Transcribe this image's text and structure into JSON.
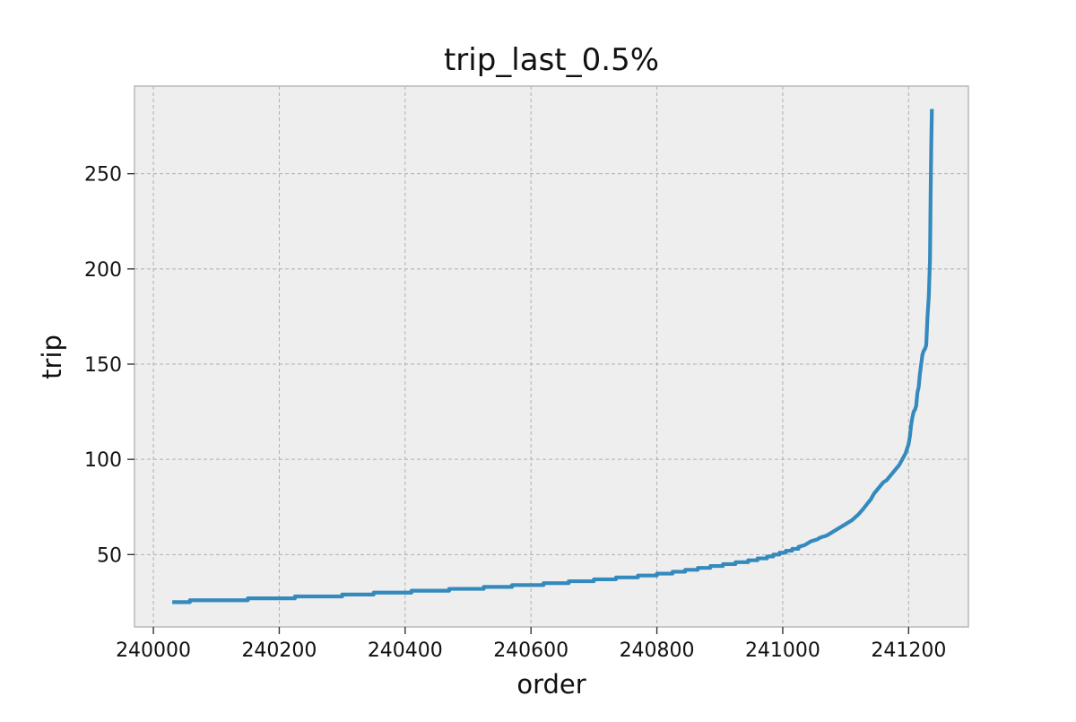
{
  "chart_data": {
    "type": "line",
    "title": "trip_last_0.5%",
    "xlabel": "order",
    "ylabel": "trip",
    "xlim": [
      239970,
      241295
    ],
    "ylim": [
      12,
      296
    ],
    "xticks": [
      240000,
      240200,
      240400,
      240600,
      240800,
      241000,
      241200
    ],
    "xtick_labels": [
      "240000",
      "240200",
      "240400",
      "240600",
      "240800",
      "241000",
      "241200"
    ],
    "yticks": [
      50,
      100,
      150,
      200,
      250
    ],
    "ytick_labels": [
      "50",
      "100",
      "150",
      "200",
      "250"
    ],
    "grid": true,
    "style": {
      "line_color": "#348abd",
      "plot_background": "#eeeeee",
      "grid_color": "#b0b0b0",
      "spine_color": "#bcbcbc"
    },
    "series": [
      {
        "x": [
          240030,
          240058,
          240058,
          240150,
          240150,
          240225,
          240225,
          240300,
          240300,
          240350,
          240350,
          240410,
          240410,
          240470,
          240470,
          240525,
          240525,
          240570,
          240570,
          240620,
          240620,
          240660,
          240660,
          240700,
          240700,
          240735,
          240735,
          240770,
          240770,
          240800,
          240800,
          240825,
          240825,
          240845,
          240845,
          240865,
          240865,
          240885,
          240885,
          240905,
          240905,
          240925,
          240925,
          240945,
          240945,
          240960,
          240960,
          240975,
          240975,
          240985,
          240985,
          240995,
          240995,
          241005,
          241005,
          241015,
          241015,
          241025,
          241025,
          241035,
          241040,
          241045,
          241055,
          241060,
          241070,
          241080,
          241090,
          241100,
          241110,
          241120,
          241128,
          241135,
          241140,
          241145,
          241150,
          241155,
          241160,
          241165,
          241170,
          241175,
          241180,
          241185,
          241190,
          241195,
          241198,
          241200,
          241202,
          241204,
          241206,
          241208,
          241210,
          241212,
          241214,
          241216,
          241218,
          241220,
          241222,
          241224,
          241226,
          241228,
          241230,
          241232,
          241234,
          241235,
          241236,
          241237
        ],
        "y": [
          25,
          25,
          26,
          26,
          27,
          27,
          28,
          28,
          29,
          29,
          30,
          30,
          31,
          31,
          32,
          32,
          33,
          33,
          34,
          34,
          35,
          35,
          36,
          36,
          37,
          37,
          38,
          38,
          39,
          39,
          40,
          40,
          41,
          41,
          42,
          42,
          43,
          43,
          44,
          44,
          45,
          45,
          46,
          46,
          47,
          47,
          48,
          48,
          49,
          49,
          50,
          50,
          51,
          51,
          52,
          52,
          53,
          53,
          54,
          55,
          56,
          57,
          58,
          59,
          60,
          62,
          64,
          66,
          68,
          71,
          74,
          77,
          79,
          82,
          84,
          86,
          88,
          89,
          91,
          93,
          95,
          97,
          100,
          103,
          106,
          108,
          112,
          118,
          122,
          125,
          126,
          128,
          135,
          138,
          145,
          150,
          155,
          157,
          158,
          160,
          175,
          185,
          205,
          240,
          265,
          284
        ]
      }
    ]
  }
}
